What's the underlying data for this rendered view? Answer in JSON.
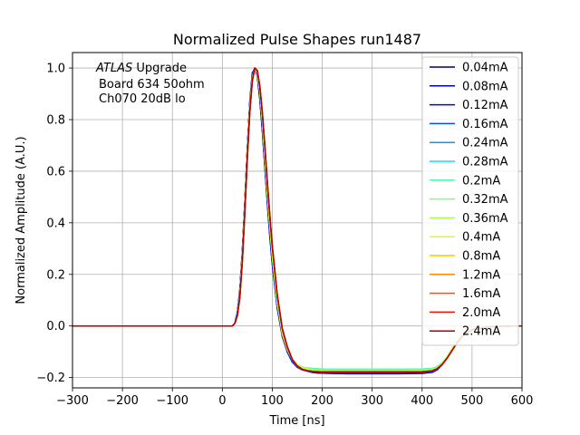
{
  "chart_data": {
    "type": "line",
    "title": "Normalized Pulse Shapes run1487",
    "xlabel": "Time [ns]",
    "ylabel": "Normalized Amplitude (A.U.)",
    "xlim": [
      -300,
      600
    ],
    "ylim": [
      -0.24,
      1.06
    ],
    "xticks": [
      -300,
      -200,
      -100,
      0,
      100,
      200,
      300,
      400,
      500,
      600
    ],
    "xtick_labels": [
      "−300",
      "−200",
      "−100",
      "0",
      "100",
      "200",
      "300",
      "400",
      "500",
      "600"
    ],
    "yticks": [
      -0.2,
      0.0,
      0.2,
      0.4,
      0.6,
      0.8,
      1.0
    ],
    "ytick_labels": [
      "−0.2",
      "0.0",
      "0.2",
      "0.4",
      "0.6",
      "0.8",
      "1.0"
    ],
    "grid": true,
    "legend_position": "top-right",
    "annotation": {
      "atlas": "ATLAS",
      "upgrade": " Upgrade",
      "line2": "Board 634 50ohm",
      "line3": "Ch070 20dB lo"
    },
    "x": [
      -300,
      0,
      20,
      25,
      30,
      35,
      40,
      45,
      50,
      55,
      60,
      65,
      70,
      75,
      80,
      85,
      90,
      95,
      100,
      110,
      120,
      130,
      140,
      150,
      160,
      170,
      180,
      190,
      200,
      220,
      250,
      300,
      350,
      400,
      420,
      430,
      440,
      450,
      460,
      470,
      480,
      490,
      500,
      520,
      540,
      560,
      580,
      600
    ],
    "series": [
      {
        "name": "0.04mA",
        "color": "#00007f",
        "values": [
          0,
          0,
          0,
          0.01,
          0.05,
          0.14,
          0.29,
          0.48,
          0.69,
          0.87,
          0.98,
          1.0,
          0.97,
          0.88,
          0.76,
          0.62,
          0.48,
          0.35,
          0.24,
          0.07,
          -0.04,
          -0.1,
          -0.14,
          -0.16,
          -0.17,
          -0.175,
          -0.18,
          -0.182,
          -0.183,
          -0.184,
          -0.185,
          -0.185,
          -0.185,
          -0.184,
          -0.18,
          -0.17,
          -0.15,
          -0.12,
          -0.09,
          -0.06,
          -0.04,
          -0.025,
          -0.015,
          -0.007,
          -0.003,
          -0.001,
          0,
          0
        ]
      },
      {
        "name": "0.08mA",
        "color": "#0000b2",
        "values": [
          0,
          0,
          0,
          0.01,
          0.05,
          0.14,
          0.29,
          0.48,
          0.69,
          0.87,
          0.98,
          1.0,
          0.97,
          0.88,
          0.76,
          0.62,
          0.48,
          0.35,
          0.24,
          0.07,
          -0.04,
          -0.1,
          -0.14,
          -0.16,
          -0.17,
          -0.175,
          -0.18,
          -0.182,
          -0.183,
          -0.184,
          -0.184,
          -0.184,
          -0.184,
          -0.183,
          -0.179,
          -0.17,
          -0.15,
          -0.12,
          -0.09,
          -0.06,
          -0.04,
          -0.025,
          -0.015,
          -0.007,
          -0.003,
          -0.001,
          0,
          0
        ]
      },
      {
        "name": "0.12mA",
        "color": "#0000ff",
        "values": [
          0,
          0,
          0,
          0.01,
          0.05,
          0.13,
          0.28,
          0.47,
          0.68,
          0.86,
          0.97,
          1.0,
          0.98,
          0.9,
          0.78,
          0.64,
          0.5,
          0.37,
          0.26,
          0.08,
          -0.03,
          -0.1,
          -0.14,
          -0.16,
          -0.17,
          -0.175,
          -0.178,
          -0.18,
          -0.181,
          -0.182,
          -0.182,
          -0.182,
          -0.182,
          -0.181,
          -0.178,
          -0.17,
          -0.15,
          -0.12,
          -0.09,
          -0.06,
          -0.04,
          -0.025,
          -0.015,
          -0.007,
          -0.003,
          -0.001,
          0,
          0
        ]
      },
      {
        "name": "0.16mA",
        "color": "#004cff",
        "values": [
          0,
          0,
          0,
          0.01,
          0.05,
          0.13,
          0.28,
          0.47,
          0.68,
          0.86,
          0.97,
          1.0,
          0.98,
          0.9,
          0.78,
          0.64,
          0.5,
          0.37,
          0.26,
          0.08,
          -0.03,
          -0.1,
          -0.14,
          -0.16,
          -0.17,
          -0.175,
          -0.177,
          -0.178,
          -0.179,
          -0.18,
          -0.18,
          -0.18,
          -0.18,
          -0.179,
          -0.176,
          -0.168,
          -0.15,
          -0.12,
          -0.09,
          -0.06,
          -0.04,
          -0.025,
          -0.015,
          -0.007,
          -0.003,
          -0.001,
          0,
          0
        ]
      },
      {
        "name": "0.24mA",
        "color": "#0099ff",
        "values": [
          0,
          0,
          0,
          0.01,
          0.04,
          0.12,
          0.27,
          0.46,
          0.67,
          0.85,
          0.96,
          1.0,
          0.98,
          0.91,
          0.8,
          0.66,
          0.52,
          0.39,
          0.27,
          0.09,
          -0.03,
          -0.09,
          -0.13,
          -0.15,
          -0.16,
          -0.165,
          -0.168,
          -0.17,
          -0.171,
          -0.172,
          -0.172,
          -0.172,
          -0.172,
          -0.171,
          -0.168,
          -0.16,
          -0.145,
          -0.12,
          -0.09,
          -0.06,
          -0.04,
          -0.025,
          -0.015,
          -0.007,
          -0.003,
          -0.001,
          0,
          0
        ]
      },
      {
        "name": "0.28mA",
        "color": "#00e5f7",
        "values": [
          0,
          0,
          0,
          0.01,
          0.04,
          0.12,
          0.27,
          0.46,
          0.67,
          0.85,
          0.96,
          1.0,
          0.98,
          0.91,
          0.8,
          0.66,
          0.52,
          0.39,
          0.27,
          0.09,
          -0.03,
          -0.09,
          -0.13,
          -0.15,
          -0.16,
          -0.163,
          -0.165,
          -0.166,
          -0.167,
          -0.168,
          -0.168,
          -0.168,
          -0.168,
          -0.167,
          -0.165,
          -0.158,
          -0.143,
          -0.12,
          -0.09,
          -0.06,
          -0.04,
          -0.025,
          -0.015,
          -0.007,
          -0.003,
          -0.001,
          0,
          0
        ]
      },
      {
        "name": "0.2mA",
        "color": "#4cffaa",
        "values": [
          0,
          0,
          0,
          0.01,
          0.04,
          0.12,
          0.27,
          0.46,
          0.67,
          0.85,
          0.96,
          1.0,
          0.98,
          0.91,
          0.8,
          0.66,
          0.52,
          0.39,
          0.27,
          0.09,
          -0.03,
          -0.09,
          -0.13,
          -0.15,
          -0.16,
          -0.163,
          -0.165,
          -0.166,
          -0.167,
          -0.168,
          -0.168,
          -0.168,
          -0.168,
          -0.167,
          -0.165,
          -0.158,
          -0.143,
          -0.12,
          -0.09,
          -0.06,
          -0.04,
          -0.025,
          -0.015,
          -0.007,
          -0.003,
          -0.001,
          0,
          0
        ]
      },
      {
        "name": "0.32mA",
        "color": "#7cff79",
        "values": [
          0,
          0,
          0,
          0.01,
          0.04,
          0.12,
          0.27,
          0.46,
          0.67,
          0.85,
          0.96,
          1.0,
          0.98,
          0.91,
          0.8,
          0.66,
          0.52,
          0.39,
          0.27,
          0.09,
          -0.03,
          -0.09,
          -0.13,
          -0.15,
          -0.16,
          -0.165,
          -0.168,
          -0.17,
          -0.171,
          -0.172,
          -0.172,
          -0.172,
          -0.172,
          -0.171,
          -0.168,
          -0.16,
          -0.145,
          -0.12,
          -0.09,
          -0.06,
          -0.04,
          -0.025,
          -0.015,
          -0.007,
          -0.003,
          -0.001,
          0,
          0
        ]
      },
      {
        "name": "0.36mA",
        "color": "#aaff4c",
        "values": [
          0,
          0,
          0,
          0.01,
          0.04,
          0.12,
          0.27,
          0.46,
          0.67,
          0.85,
          0.96,
          1.0,
          0.98,
          0.91,
          0.8,
          0.66,
          0.52,
          0.39,
          0.27,
          0.09,
          -0.03,
          -0.09,
          -0.13,
          -0.15,
          -0.16,
          -0.166,
          -0.17,
          -0.172,
          -0.173,
          -0.174,
          -0.174,
          -0.174,
          -0.174,
          -0.173,
          -0.17,
          -0.162,
          -0.146,
          -0.12,
          -0.09,
          -0.06,
          -0.04,
          -0.025,
          -0.015,
          -0.007,
          -0.003,
          -0.001,
          0,
          0
        ]
      },
      {
        "name": "0.4mA",
        "color": "#d7ff1e",
        "values": [
          0,
          0,
          0,
          0.01,
          0.04,
          0.12,
          0.26,
          0.45,
          0.66,
          0.84,
          0.96,
          1.0,
          0.98,
          0.92,
          0.81,
          0.67,
          0.53,
          0.4,
          0.28,
          0.1,
          -0.02,
          -0.09,
          -0.13,
          -0.15,
          -0.165,
          -0.17,
          -0.173,
          -0.175,
          -0.176,
          -0.177,
          -0.177,
          -0.177,
          -0.177,
          -0.176,
          -0.173,
          -0.165,
          -0.148,
          -0.12,
          -0.09,
          -0.06,
          -0.04,
          -0.025,
          -0.015,
          -0.007,
          -0.003,
          -0.001,
          0,
          0
        ]
      },
      {
        "name": "0.8mA",
        "color": "#ffc400",
        "values": [
          0,
          0,
          0,
          0.01,
          0.04,
          0.11,
          0.25,
          0.44,
          0.65,
          0.83,
          0.95,
          1.0,
          0.99,
          0.93,
          0.82,
          0.69,
          0.55,
          0.42,
          0.3,
          0.11,
          -0.02,
          -0.09,
          -0.13,
          -0.155,
          -0.168,
          -0.173,
          -0.176,
          -0.177,
          -0.178,
          -0.178,
          -0.178,
          -0.178,
          -0.178,
          -0.177,
          -0.174,
          -0.166,
          -0.15,
          -0.125,
          -0.095,
          -0.065,
          -0.042,
          -0.026,
          -0.015,
          -0.007,
          -0.003,
          -0.001,
          0,
          0
        ]
      },
      {
        "name": "1.2mA",
        "color": "#ff8900",
        "values": [
          0,
          0,
          0,
          0.01,
          0.04,
          0.11,
          0.25,
          0.44,
          0.65,
          0.83,
          0.95,
          1.0,
          0.99,
          0.93,
          0.83,
          0.7,
          0.56,
          0.43,
          0.31,
          0.12,
          -0.01,
          -0.08,
          -0.13,
          -0.155,
          -0.168,
          -0.173,
          -0.176,
          -0.177,
          -0.178,
          -0.178,
          -0.178,
          -0.178,
          -0.178,
          -0.177,
          -0.174,
          -0.166,
          -0.15,
          -0.125,
          -0.095,
          -0.065,
          -0.042,
          -0.026,
          -0.015,
          -0.007,
          -0.003,
          -0.001,
          0,
          0
        ]
      },
      {
        "name": "1.6mA",
        "color": "#ff4e00",
        "values": [
          0,
          0,
          0,
          0.01,
          0.04,
          0.11,
          0.25,
          0.44,
          0.65,
          0.83,
          0.95,
          1.0,
          0.99,
          0.93,
          0.83,
          0.7,
          0.56,
          0.43,
          0.31,
          0.12,
          -0.01,
          -0.08,
          -0.13,
          -0.155,
          -0.168,
          -0.173,
          -0.176,
          -0.177,
          -0.178,
          -0.178,
          -0.178,
          -0.178,
          -0.178,
          -0.177,
          -0.174,
          -0.166,
          -0.15,
          -0.125,
          -0.095,
          -0.065,
          -0.042,
          -0.026,
          -0.015,
          -0.007,
          -0.003,
          -0.001,
          0,
          0
        ]
      },
      {
        "name": "2.0mA",
        "color": "#f01000",
        "values": [
          0,
          0,
          0,
          0.01,
          0.04,
          0.11,
          0.25,
          0.44,
          0.65,
          0.83,
          0.95,
          1.0,
          0.99,
          0.93,
          0.83,
          0.7,
          0.56,
          0.43,
          0.31,
          0.12,
          -0.01,
          -0.08,
          -0.13,
          -0.155,
          -0.168,
          -0.173,
          -0.176,
          -0.177,
          -0.178,
          -0.178,
          -0.178,
          -0.178,
          -0.178,
          -0.177,
          -0.174,
          -0.166,
          -0.15,
          -0.125,
          -0.095,
          -0.065,
          -0.042,
          -0.026,
          -0.015,
          -0.007,
          -0.003,
          -0.001,
          0,
          0
        ]
      },
      {
        "name": "2.4mA",
        "color": "#b20000",
        "values": [
          0,
          0,
          0,
          0.01,
          0.04,
          0.11,
          0.25,
          0.44,
          0.65,
          0.83,
          0.95,
          1.0,
          0.99,
          0.93,
          0.83,
          0.7,
          0.56,
          0.43,
          0.31,
          0.12,
          -0.01,
          -0.08,
          -0.13,
          -0.155,
          -0.168,
          -0.173,
          -0.176,
          -0.177,
          -0.178,
          -0.178,
          -0.178,
          -0.178,
          -0.178,
          -0.177,
          -0.174,
          -0.166,
          -0.15,
          -0.125,
          -0.095,
          -0.065,
          -0.042,
          -0.026,
          -0.015,
          -0.007,
          -0.003,
          -0.001,
          0,
          0
        ]
      }
    ]
  }
}
